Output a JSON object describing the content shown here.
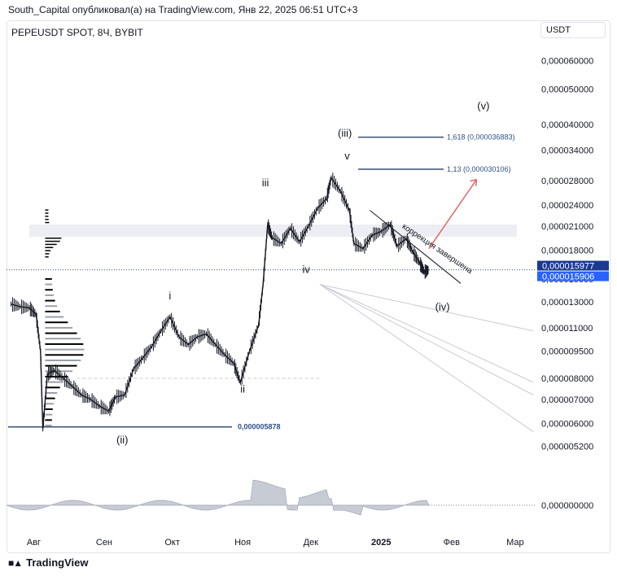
{
  "header": {
    "publisher": "South_Capital опубликовал(а) на TradingView.com, Янв 22, 2025 06:51 UTC+3"
  },
  "symbol": {
    "title": "PEPEUSDT SPOT, 8Ч, BYBIT"
  },
  "currency": "USDT",
  "footer": {
    "brand": "TradingView",
    "logo": "tradingview-logo-icon"
  },
  "chart_data": {
    "type": "line",
    "log_scale": true,
    "ylim": [
      4.9e-06,
      6.8e-05
    ],
    "price_ticks": [
      "0,000060000",
      "0,000050000",
      "0,000040000",
      "0,000034000",
      "0,000028000",
      "0,000024000",
      "0,000021000",
      "0,000018000",
      "0,000015000",
      "0,000013000",
      "0,000011000",
      "0,000009500",
      "0,000008000",
      "0,000007000",
      "0,000006000",
      "0,000005200"
    ],
    "price_tick_values": [
      6e-05,
      5e-05,
      4e-05,
      3.4e-05,
      2.8e-05,
      2.4e-05,
      2.1e-05,
      1.8e-05,
      1.5e-05,
      1.3e-05,
      1.1e-05,
      9.5e-06,
      8e-06,
      7e-06,
      6e-06,
      5.2e-06
    ],
    "x_ticks": [
      "Авг",
      "Сен",
      "Окт",
      "Ноя",
      "Дек",
      "2025",
      "Фев",
      "Мар"
    ],
    "x_tick_dates": [
      "2024-08-01",
      "2024-09-01",
      "2024-10-01",
      "2024-11-01",
      "2024-12-01",
      "2025-01-01",
      "2025-02-01",
      "2025-03-01"
    ],
    "bold_x_tick": "2025",
    "price_series": {
      "x": [
        "2024-07-22",
        "2024-07-26",
        "2024-07-30",
        "2024-08-02",
        "2024-08-04",
        "2024-08-05",
        "2024-08-07",
        "2024-08-10",
        "2024-08-14",
        "2024-08-18",
        "2024-08-22",
        "2024-08-26",
        "2024-08-30",
        "2024-09-03",
        "2024-09-06",
        "2024-09-10",
        "2024-09-14",
        "2024-09-18",
        "2024-09-22",
        "2024-09-26",
        "2024-09-30",
        "2024-10-04",
        "2024-10-08",
        "2024-10-12",
        "2024-10-16",
        "2024-10-20",
        "2024-10-24",
        "2024-10-28",
        "2024-10-31",
        "2024-11-04",
        "2024-11-08",
        "2024-11-10",
        "2024-11-12",
        "2024-11-14",
        "2024-11-18",
        "2024-11-22",
        "2024-11-26",
        "2024-11-30",
        "2024-12-04",
        "2024-12-08",
        "2024-12-10",
        "2024-12-14",
        "2024-12-18",
        "2024-12-20",
        "2024-12-24",
        "2024-12-28",
        "2025-01-01",
        "2025-01-05",
        "2025-01-08",
        "2025-01-12",
        "2025-01-15",
        "2025-01-18",
        "2025-01-20",
        "2025-01-22"
      ],
      "values": [
        1.28e-05,
        1.26e-05,
        1.25e-05,
        1.2e-05,
        9.5e-06,
        5.8e-06,
        8.2e-06,
        8.4e-06,
        8e-06,
        7.6e-06,
        7.2e-06,
        7e-06,
        6.7e-06,
        6.5e-06,
        7.1e-06,
        7.2e-06,
        8.5e-06,
        9.1e-06,
        9.8e-06,
        1.08e-05,
        1.18e-05,
        1.04e-05,
        9.9e-06,
        1.04e-05,
        1.06e-05,
        9.9e-06,
        9.3e-06,
        8.8e-06,
        7.8e-06,
        9.5e-06,
        1.12e-05,
        1.45e-05,
        2.12e-05,
        1.95e-05,
        1.88e-05,
        2.07e-05,
        1.9e-05,
        2.1e-05,
        2.35e-05,
        2.5e-05,
        2.85e-05,
        2.62e-05,
        2.32e-05,
        1.88e-05,
        1.82e-05,
        1.98e-05,
        2.03e-05,
        2.12e-05,
        1.85e-05,
        1.94e-05,
        1.78e-05,
        1.66e-05,
        1.57e-05,
        1.591e-05
      ]
    },
    "current_price_labels": [
      "0,000015977",
      "0,000015906"
    ],
    "fib_levels": [
      {
        "label": "1,618 (0,000036883)",
        "value": 3.6883e-05
      },
      {
        "label": "1,13 (0,000030106)",
        "value": 3.0106e-05
      }
    ],
    "support_line": {
      "label": "0,000005878",
      "value": 5.878e-06
    },
    "wave_labels": [
      {
        "text": "(v)",
        "date": "2025-02-15",
        "price": 4.4e-05
      },
      {
        "text": "(iii)",
        "date": "2024-12-16",
        "price": 3.7e-05
      },
      {
        "text": "v",
        "date": "2024-12-17",
        "price": 3.2e-05
      },
      {
        "text": "iii",
        "date": "2024-11-11",
        "price": 2.7e-05
      },
      {
        "text": "i",
        "date": "2024-09-30",
        "price": 1.32e-05
      },
      {
        "text": "iv",
        "date": "2024-11-29",
        "price": 1.56e-05
      },
      {
        "text": "ii",
        "date": "2024-11-01",
        "price": 7.3e-06
      },
      {
        "text": "(ii)",
        "date": "2024-09-09",
        "price": 5.3e-06
      },
      {
        "text": "(iv)",
        "date": "2025-01-28",
        "price": 1.23e-05
      }
    ],
    "annotation": "коррекция завершена",
    "oscillator": {
      "zero_label": "0,000000000"
    }
  }
}
